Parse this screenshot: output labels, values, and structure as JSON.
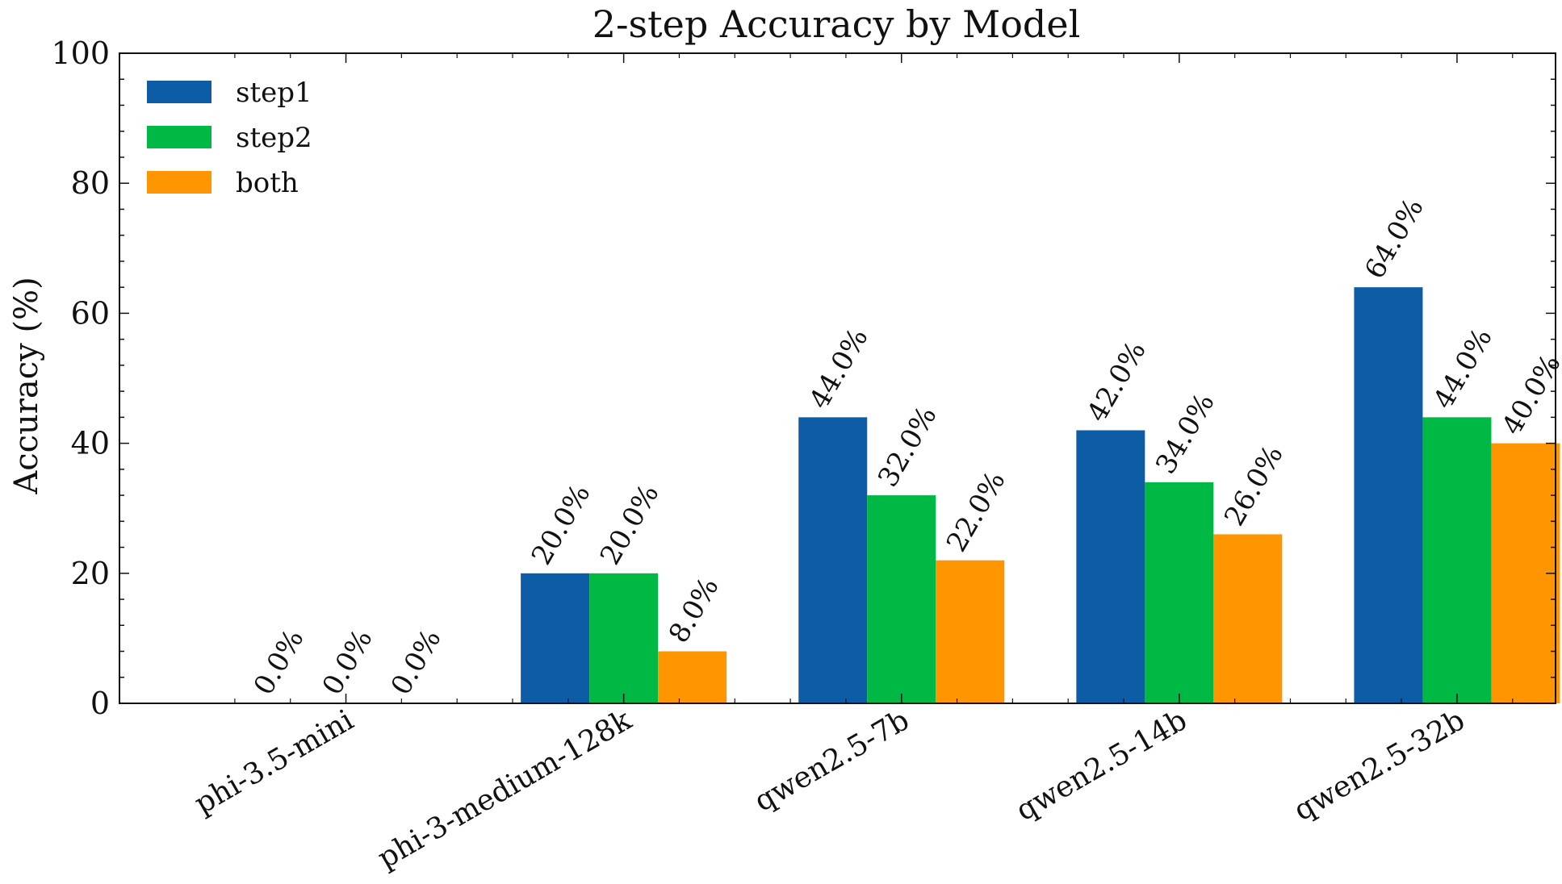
{
  "chart_data": {
    "type": "bar",
    "title": "2-step Accuracy by Model",
    "xlabel": "",
    "ylabel": "Accuracy (%)",
    "ylim": [
      0,
      100
    ],
    "yticks": [
      "0",
      "20",
      "40",
      "60",
      "80",
      "100"
    ],
    "categories": [
      "phi-3.5-mini",
      "phi-3-medium-128k",
      "qwen2.5-7b",
      "qwen2.5-14b",
      "qwen2.5-32b"
    ],
    "series": [
      {
        "name": "step1",
        "color": "#0C5DA5",
        "values": [
          0,
          20,
          44,
          42,
          64
        ],
        "labels": [
          "0.0%",
          "20.0%",
          "44.0%",
          "42.0%",
          "64.0%"
        ]
      },
      {
        "name": "step2",
        "color": "#00B945",
        "values": [
          0,
          20,
          32,
          34,
          44
        ],
        "labels": [
          "0.0%",
          "20.0%",
          "32.0%",
          "34.0%",
          "44.0%"
        ]
      },
      {
        "name": "both",
        "color": "#FF9500",
        "values": [
          0,
          8,
          22,
          26,
          40
        ],
        "labels": [
          "0.0%",
          "8.0%",
          "22.0%",
          "26.0%",
          "40.0%"
        ]
      }
    ],
    "legend": "top-left",
    "grid": false
  }
}
